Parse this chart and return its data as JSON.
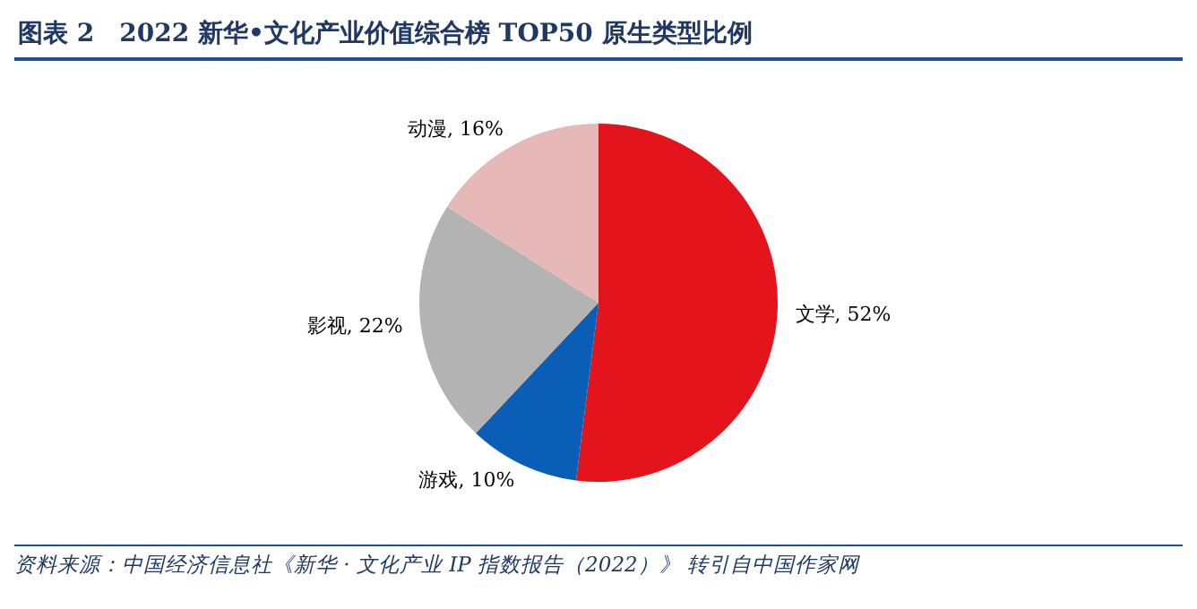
{
  "chart_data": {
    "type": "pie",
    "title": "图表 2　2022 新华•文化产业价值综合榜 TOP50 原生类型比例",
    "categories": [
      "文学",
      "游戏",
      "影视",
      "动漫"
    ],
    "values": [
      52,
      10,
      22,
      16
    ],
    "value_labels": [
      "52%",
      "10%",
      "22%",
      "16%"
    ],
    "colors": [
      "#e3141c",
      "#0a5eb5",
      "#b3b3b3",
      "#e6b8b8"
    ],
    "legend": false,
    "annotations": [
      "资料来源：中国经济信息社《新华 · 文化产业 IP 指数报告（2022）》 转引自中国作家网"
    ]
  }
}
